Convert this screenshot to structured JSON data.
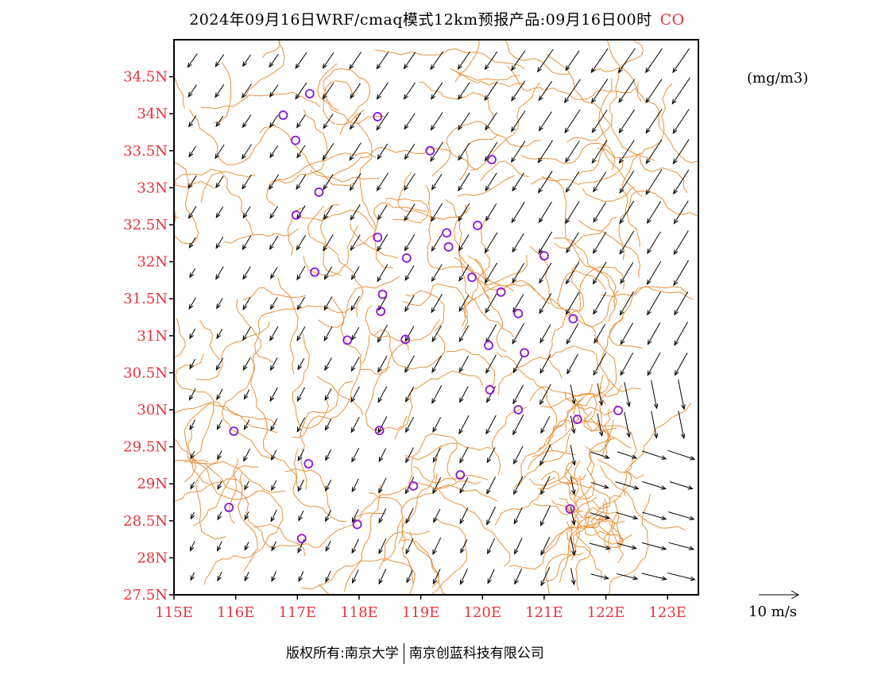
{
  "title": {
    "text": "2024年09月16日WRF/cmaq模式12km预报产品:09月16日00时",
    "species": "CO"
  },
  "units": "(mg/m3)",
  "scale": {
    "label": "10 m/s",
    "speed": 10
  },
  "footer": {
    "left": "版权所有:南京大学",
    "right": "南京创蓝科技有限公司"
  },
  "axes": {
    "lon_min": 115,
    "lon_max": 123.5,
    "lat_min": 27.5,
    "lat_max": 35,
    "x_ticks": [
      {
        "v": 115,
        "label": "115E"
      },
      {
        "v": 116,
        "label": "116E"
      },
      {
        "v": 117,
        "label": "117E"
      },
      {
        "v": 118,
        "label": "118E"
      },
      {
        "v": 119,
        "label": "119E"
      },
      {
        "v": 120,
        "label": "120E"
      },
      {
        "v": 121,
        "label": "121E"
      },
      {
        "v": 122,
        "label": "122E"
      },
      {
        "v": 123,
        "label": "123E"
      }
    ],
    "y_ticks": [
      {
        "v": 27.5,
        "label": "27.5N"
      },
      {
        "v": 28,
        "label": "28N"
      },
      {
        "v": 28.5,
        "label": "28.5N"
      },
      {
        "v": 29,
        "label": "29N"
      },
      {
        "v": 29.5,
        "label": "29.5N"
      },
      {
        "v": 30,
        "label": "30N"
      },
      {
        "v": 30.5,
        "label": "30.5N"
      },
      {
        "v": 31,
        "label": "31N"
      },
      {
        "v": 31.5,
        "label": "31.5N"
      },
      {
        "v": 32,
        "label": "32N"
      },
      {
        "v": 32.5,
        "label": "32.5N"
      },
      {
        "v": 33,
        "label": "33N"
      },
      {
        "v": 33.5,
        "label": "33.5N"
      },
      {
        "v": 34,
        "label": "34N"
      },
      {
        "v": 34.5,
        "label": "34.5N"
      }
    ]
  },
  "colors": {
    "border": "#e8913a",
    "station": "#8b16d6",
    "tick": "#e8323c",
    "arrow": "#000000"
  },
  "stations": [
    [
      117.2,
      34.27
    ],
    [
      116.77,
      33.98
    ],
    [
      118.3,
      33.96
    ],
    [
      116.97,
      33.64
    ],
    [
      119.15,
      33.5
    ],
    [
      120.15,
      33.38
    ],
    [
      117.35,
      32.94
    ],
    [
      116.98,
      32.63
    ],
    [
      119.92,
      32.49
    ],
    [
      119.42,
      32.39
    ],
    [
      118.3,
      32.33
    ],
    [
      119.45,
      32.2
    ],
    [
      118.77,
      32.05
    ],
    [
      121.0,
      32.08
    ],
    [
      117.28,
      31.86
    ],
    [
      119.83,
      31.79
    ],
    [
      118.38,
      31.56
    ],
    [
      120.3,
      31.59
    ],
    [
      118.35,
      31.33
    ],
    [
      120.58,
      31.3
    ],
    [
      121.47,
      31.23
    ],
    [
      117.81,
      30.94
    ],
    [
      118.75,
      30.95
    ],
    [
      120.1,
      30.87
    ],
    [
      120.68,
      30.77
    ],
    [
      120.12,
      30.27
    ],
    [
      120.58,
      30.0
    ],
    [
      122.2,
      29.99
    ],
    [
      121.54,
      29.87
    ],
    [
      115.97,
      29.71
    ],
    [
      118.33,
      29.72
    ],
    [
      117.18,
      29.27
    ],
    [
      118.88,
      28.97
    ],
    [
      119.64,
      29.12
    ],
    [
      115.89,
      28.68
    ],
    [
      121.42,
      28.66
    ],
    [
      117.97,
      28.45
    ],
    [
      117.07,
      28.26
    ]
  ],
  "wind_grid": {
    "lon_start": 115.3,
    "lon_step": 0.44,
    "cols": 19,
    "lat_start": 27.75,
    "lat_step": 0.41,
    "rows": 18
  }
}
